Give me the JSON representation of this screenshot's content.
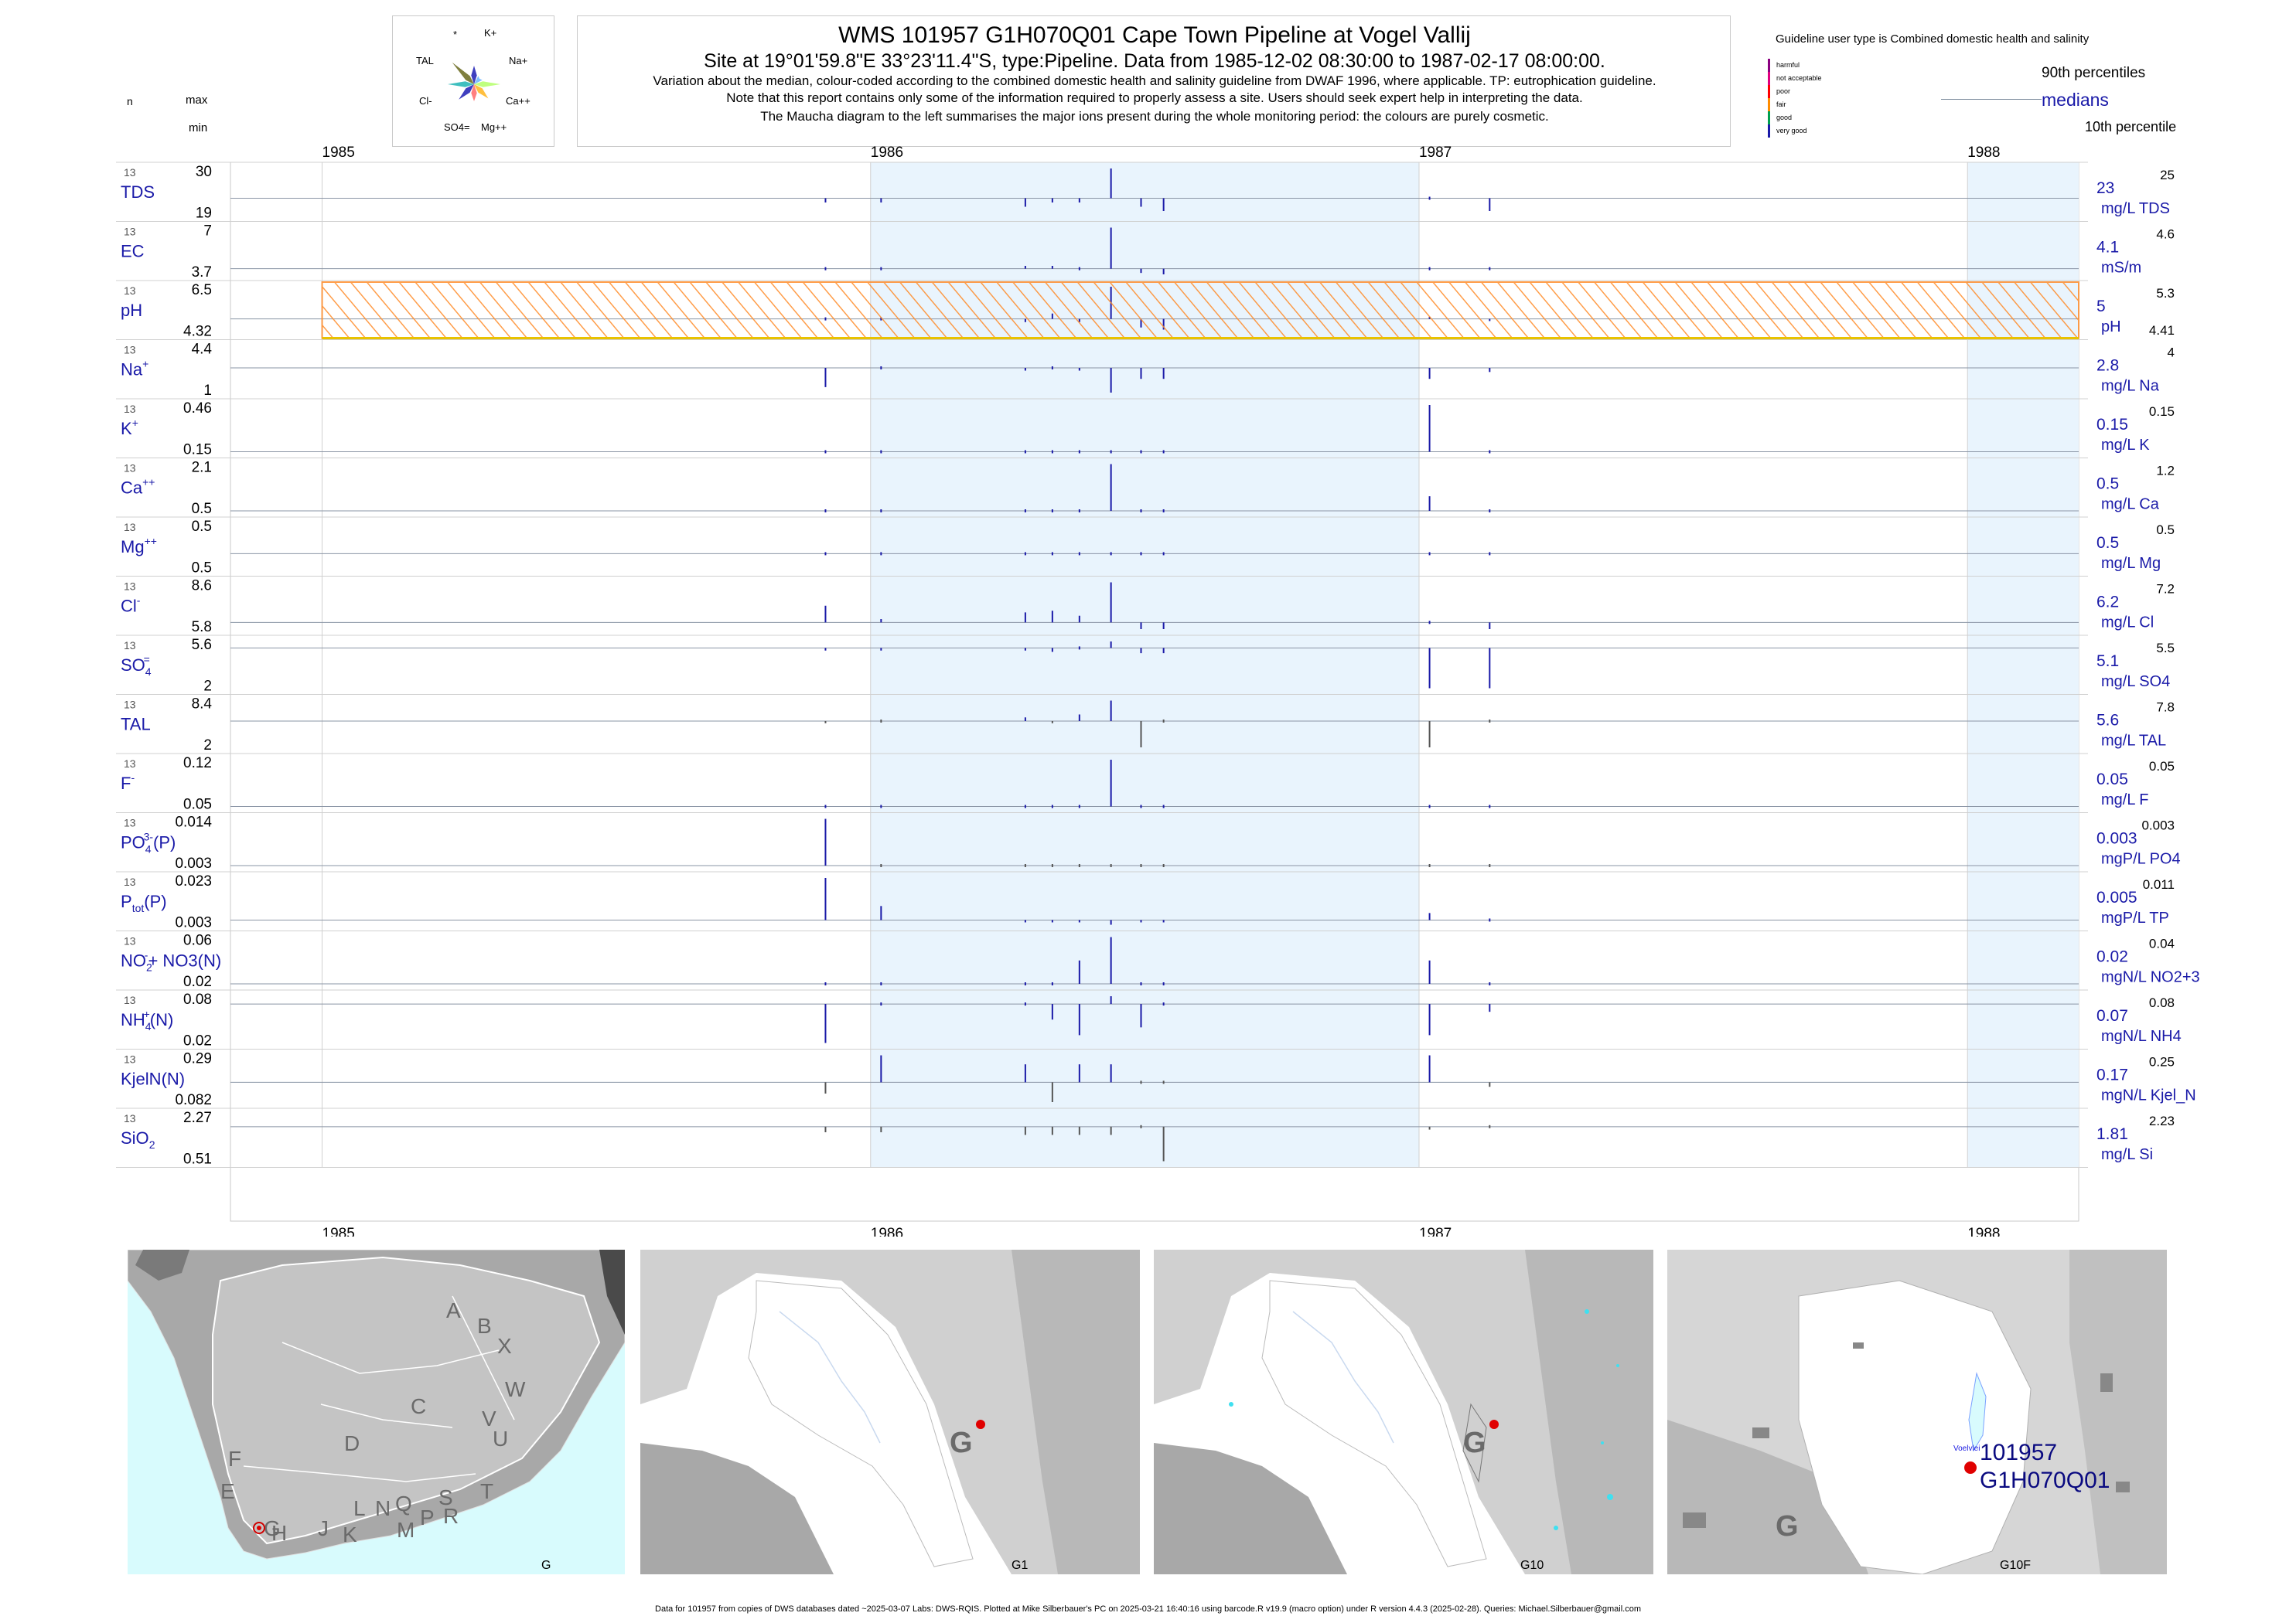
{
  "header": {
    "title": "WMS 101957 G1H070Q01 Cape Town Pipeline at Vogel Vallij",
    "subtitle": "Site at 19°01'59.8\"E 33°23'11.4\"S, type:Pipeline.  Data from 1985-12-02 08:30:00 to 1987-02-17 08:00:00.",
    "notes": [
      "Variation about the median,  colour-coded according to the combined domestic health and salinity guideline from DWAF 1996, where applicable. TP: eutrophication guideline.",
      "Note that this report contains only some of the information required to properly assess a site. Users should seek expert help in interpreting the data.",
      "The Maucha diagram to the left summarises the major ions present during the whole monitoring period: the colours are purely cosmetic."
    ],
    "col_n": "n",
    "col_max": "max",
    "col_min": "min"
  },
  "maucha": {
    "labels": [
      "*",
      "K+",
      "Na+",
      "Ca++",
      "Mg++",
      "SO4=",
      "Cl-",
      "TAL"
    ],
    "colors": [
      "#3f3fbf",
      "#7fbfff",
      "#bfff7f",
      "#ffbf3f",
      "#ff7f7f",
      "#3f3fbf",
      "#3fbfbf",
      "#7f7f3f"
    ]
  },
  "legend": {
    "guideline_title": "Guideline user type is Combined domestic health and salinity",
    "classes": [
      {
        "label": "harmful",
        "color": "#8b0080"
      },
      {
        "label": "not acceptable",
        "color": "#e0007f"
      },
      {
        "label": "poor",
        "color": "#ff0000"
      },
      {
        "label": "fair",
        "color": "#ff8c00"
      },
      {
        "label": "good",
        "color": "#00a050"
      },
      {
        "label": "very good",
        "color": "#1a1aa8"
      }
    ],
    "p90": "90th percentiles",
    "medians": "medians",
    "p10": "10th percentile"
  },
  "chart_data": {
    "type": "line",
    "xlabel": "",
    "ylabel": "",
    "x_range": [
      "1984-11-01",
      "1988-03-15"
    ],
    "year_ticks": [
      "1985",
      "1986",
      "1987",
      "1988"
    ],
    "shaded_years": [
      "1986",
      "1988"
    ],
    "sample_dates": [
      "1985-12-02",
      "1986-01-08",
      "1986-04-14",
      "1986-05-02",
      "1986-05-20",
      "1986-06-10",
      "1986-06-30",
      "1986-07-15",
      "1987-01-08",
      "1987-02-17"
    ],
    "ph_guideline_band": {
      "low": 4.32,
      "high": 6.5,
      "rating": "fair"
    },
    "series": [
      {
        "name": "TDS",
        "sup": "",
        "sub": "",
        "tail": "",
        "n": "13",
        "max": "30",
        "min": "19",
        "median": "23",
        "unit": "mg/L TDS",
        "p90": "25",
        "p10": "",
        "values": [
          22,
          22,
          21,
          22,
          22,
          30,
          21,
          20,
          23,
          20
        ]
      },
      {
        "name": "EC",
        "sup": "",
        "sub": "",
        "tail": "",
        "n": "13",
        "max": "7",
        "min": "3.7",
        "median": "4.1",
        "unit": "mS/m",
        "p90": "4.6",
        "p10": "",
        "values": [
          4.0,
          4.0,
          4.3,
          4.3,
          4.2,
          7.0,
          3.8,
          3.7,
          4.1,
          4.1
        ]
      },
      {
        "name": "pH",
        "sup": "",
        "sub": "",
        "tail": "",
        "n": "13",
        "max": "6.5",
        "min": "4.32",
        "median": "5",
        "unit": "pH",
        "p90": "5.3",
        "p10": "4.41",
        "values": [
          5.0,
          5.0,
          4.85,
          5.25,
          4.85,
          6.5,
          4.6,
          4.5,
          5.1,
          4.9
        ]
      },
      {
        "name": "Na",
        "sup": "+",
        "sub": "",
        "tail": "",
        "n": "13",
        "max": "4.4",
        "min": "1",
        "median": "2.8",
        "unit": "mg/L Na",
        "p90": "4",
        "p10": "",
        "values": [
          1.4,
          2.8,
          2.6,
          2.7,
          2.6,
          1.0,
          2.0,
          2.0,
          2.0,
          2.5
        ]
      },
      {
        "name": "K",
        "sup": "+",
        "sub": "",
        "tail": "",
        "n": "13",
        "max": "0.46",
        "min": "0.15",
        "median": "0.15",
        "unit": "mg/L K",
        "p90": "0.15",
        "p10": "",
        "values": [
          0.15,
          0.15,
          0.15,
          0.15,
          0.15,
          0.15,
          0.15,
          0.15,
          0.46,
          0.15
        ]
      },
      {
        "name": "Ca",
        "sup": "++",
        "sub": "",
        "tail": "",
        "n": "13",
        "max": "2.1",
        "min": "0.5",
        "median": "0.5",
        "unit": "mg/L Ca",
        "p90": "1.2",
        "p10": "",
        "values": [
          0.5,
          0.5,
          0.5,
          0.5,
          0.5,
          2.1,
          0.5,
          0.5,
          1.0,
          0.5
        ]
      },
      {
        "name": "Mg",
        "sup": "++",
        "sub": "",
        "tail": "",
        "n": "13",
        "max": "0.5",
        "min": "0.5",
        "median": "0.5",
        "unit": "mg/L Mg",
        "p90": "0.5",
        "p10": "",
        "values": [
          0.5,
          0.5,
          0.5,
          0.5,
          0.5,
          0.5,
          0.5,
          0.5,
          0.5,
          0.5
        ]
      },
      {
        "name": "Cl",
        "sup": "-",
        "sub": "",
        "tail": "",
        "n": "13",
        "max": "8.6",
        "min": "5.8",
        "median": "6.2",
        "unit": "mg/L Cl",
        "p90": "7.2",
        "p10": "",
        "values": [
          7.2,
          6.4,
          6.8,
          6.9,
          6.6,
          8.6,
          5.8,
          5.8,
          6.2,
          5.8
        ]
      },
      {
        "name": "SO",
        "sup": "=",
        "sub": "4",
        "tail": "",
        "n": "13",
        "max": "5.6",
        "min": "2",
        "median": "5.1",
        "unit": "mg/L SO4",
        "p90": "5.5",
        "p10": "",
        "values": [
          4.9,
          4.9,
          4.9,
          4.8,
          5.0,
          5.6,
          4.7,
          4.7,
          2.0,
          2.0
        ]
      },
      {
        "name": "TAL",
        "sup": "",
        "sub": "",
        "tail": "",
        "n": "13",
        "max": "8.4",
        "min": "2",
        "median": "5.6",
        "unit": "mg/L TAL",
        "p90": "7.8",
        "p10": "",
        "values": [
          5.3,
          5.6,
          6.1,
          5.3,
          6.5,
          8.4,
          2.0,
          5.6,
          2.0,
          5.6
        ]
      },
      {
        "name": "F",
        "sup": "-",
        "sub": "",
        "tail": "",
        "n": "13",
        "max": "0.12",
        "min": "0.05",
        "median": "0.05",
        "unit": "mg/L F",
        "p90": "0.05",
        "p10": "",
        "values": [
          0.05,
          0.05,
          0.05,
          0.05,
          0.05,
          0.12,
          0.05,
          0.05,
          0.05,
          0.05
        ]
      },
      {
        "name": "PO",
        "sup": "3-",
        "sub": "4",
        "tail": "(P)",
        "n": "13",
        "max": "0.014",
        "min": "0.003",
        "median": "0.003",
        "unit": "mgP/L PO4",
        "p90": "0.003",
        "p10": "",
        "values": [
          0.014,
          0.003,
          0.003,
          0.003,
          0.003,
          0.003,
          0.003,
          0.003,
          0.003,
          0.003
        ]
      },
      {
        "name": "P",
        "sup": "",
        "sub": "tot",
        "tail": "(P)",
        "n": "13",
        "max": "0.023",
        "min": "0.003",
        "median": "0.005",
        "unit": "mgP/L TP",
        "p90": "0.011",
        "p10": "",
        "values": [
          0.023,
          0.011,
          0.004,
          0.004,
          0.004,
          0.003,
          0.004,
          0.004,
          0.008,
          0.005
        ]
      },
      {
        "name": "NO",
        "sup": "-",
        "sub": "2",
        "tail": "+ NO3(N)",
        "n": "13",
        "max": "0.06",
        "min": "0.02",
        "median": "0.02",
        "unit": "mgN/L NO2+3",
        "p90": "0.04",
        "p10": "",
        "values": [
          0.02,
          0.02,
          0.02,
          0.02,
          0.04,
          0.06,
          0.02,
          0.02,
          0.04,
          0.02
        ]
      },
      {
        "name": "NH",
        "sup": "+",
        "sub": "4",
        "tail": "(N)",
        "n": "13",
        "max": "0.08",
        "min": "0.02",
        "median": "0.07",
        "unit": "mgN/L NH4",
        "p90": "0.08",
        "p10": "",
        "values": [
          0.02,
          0.07,
          0.07,
          0.05,
          0.03,
          0.08,
          0.04,
          0.07,
          0.03,
          0.06
        ]
      },
      {
        "name": "KjelN(N)",
        "sup": "",
        "sub": "",
        "tail": "",
        "n": "13",
        "max": "0.29",
        "min": "0.082",
        "median": "0.17",
        "unit": "mgN/L Kjel_N",
        "p90": "0.25",
        "p10": "",
        "values": [
          0.12,
          0.29,
          0.25,
          0.082,
          0.25,
          0.25,
          0.17,
          0.17,
          0.29,
          0.15
        ]
      },
      {
        "name": "SiO",
        "sup": "",
        "sub": "2",
        "tail": "",
        "n": "13",
        "max": "2.27",
        "min": "0.51",
        "median": "1.81",
        "unit": "mg/L Si",
        "p90": "2.23",
        "p10": "",
        "values": [
          1.6,
          1.6,
          1.5,
          1.5,
          1.5,
          1.5,
          1.81,
          0.51,
          1.7,
          1.81
        ]
      }
    ]
  },
  "maps": [
    {
      "tag": "G",
      "letters": [
        "A",
        "B",
        "X",
        "W",
        "C",
        "V",
        "U",
        "D",
        "T",
        "F",
        "E",
        "G",
        "H",
        "J",
        "K",
        "L",
        "N",
        "Q",
        "M",
        "P",
        "S",
        "R"
      ]
    },
    {
      "tag": "G1",
      "region": "G"
    },
    {
      "tag": "G10",
      "region": "G"
    },
    {
      "tag": "G10F",
      "region": "G",
      "place": "Voelvlei",
      "site_id": "101957",
      "site_code": "G1H070Q01"
    }
  ],
  "footer": "Data for 101957 from copies of DWS databases dated ~2025-03-07 Labs: DWS-RQIS. Plotted at Mike Silberbauer's PC on 2025-03-21 16:40:16 using barcode.R v19.9 (macro option) under R version 4.4.3 (2025-02-28). Queries: Michael.Silberbauer@gmail.com"
}
